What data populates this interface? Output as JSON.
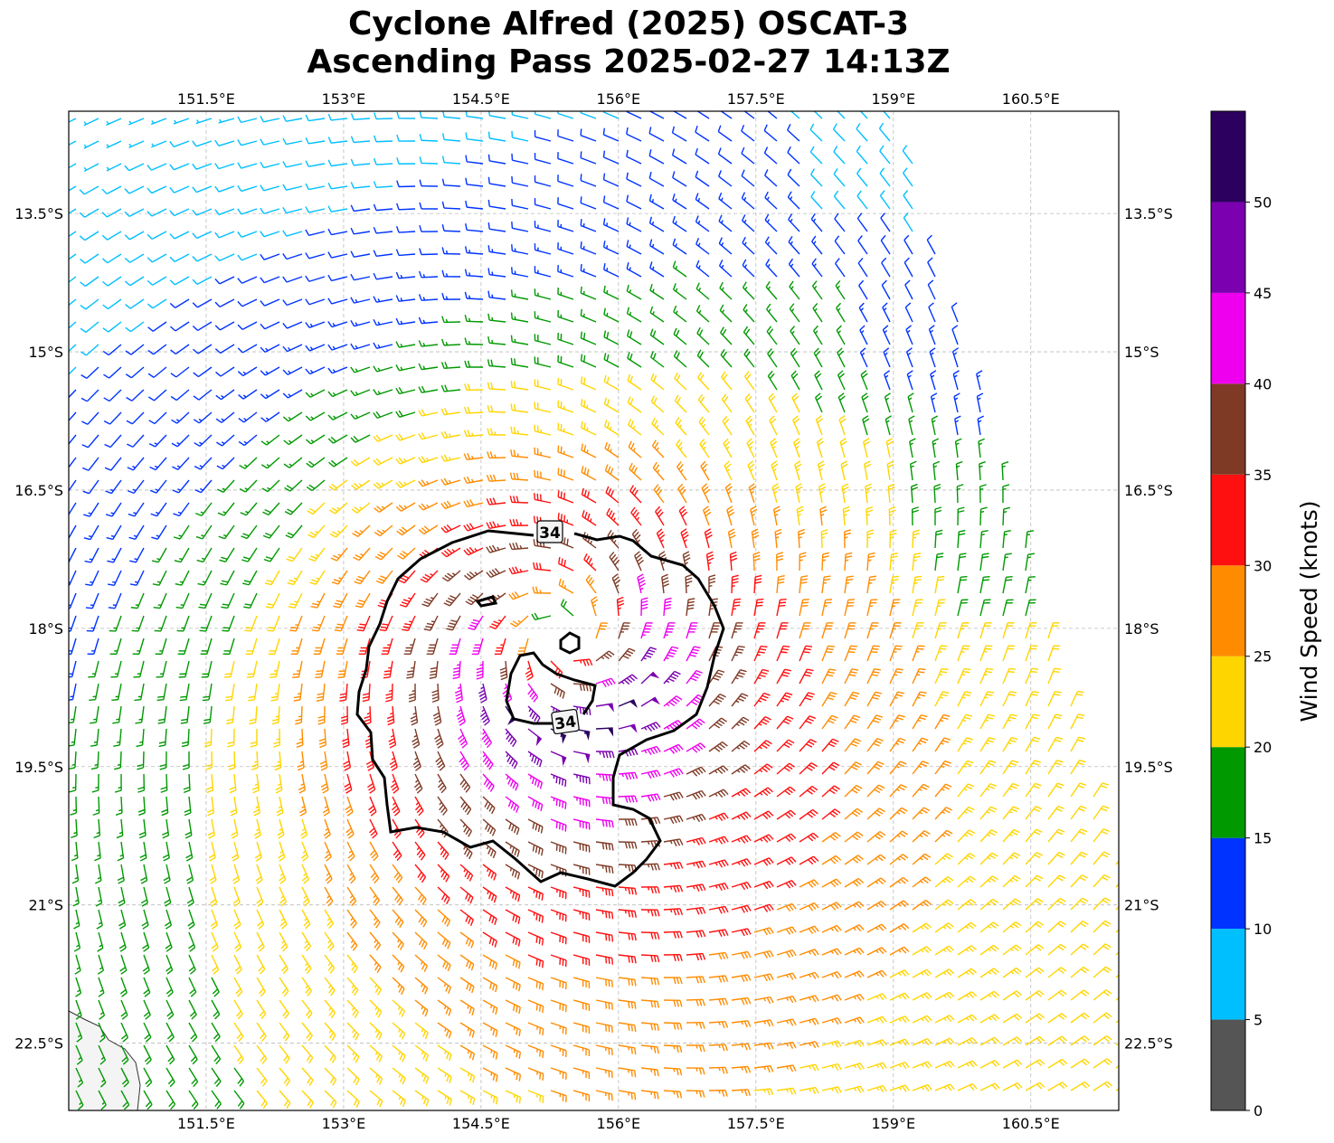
{
  "title_line1": "Cyclone Alfred (2025) OSCAT-3",
  "title_line2": "Ascending Pass 2025-02-27 14:13Z",
  "chart_data": {
    "type": "wind-barb-map",
    "lon_range": [
      150.0,
      161.46
    ],
    "lat_range": [
      -23.23,
      -12.39
    ],
    "lon_ticks": [
      "151.5°E",
      "153°E",
      "154.5°E",
      "156°E",
      "157.5°E",
      "159°E",
      "160.5°E"
    ],
    "lon_tick_values": [
      151.5,
      153,
      154.5,
      156,
      157.5,
      159,
      160.5
    ],
    "lat_ticks": [
      "13.5°S",
      "15°S",
      "16.5°S",
      "18°S",
      "19.5°S",
      "21°S",
      "22.5°S"
    ],
    "lat_tick_values": [
      -13.5,
      -15,
      -16.5,
      -18,
      -19.5,
      -21,
      -22.5
    ],
    "grid": true,
    "center": {
      "lon": 155.4,
      "lat": -18.1
    },
    "contour_level": 34,
    "contour_labels": [
      "34",
      "34"
    ],
    "colorbar": {
      "label": "Wind Speed (knots)",
      "bounds": [
        0,
        5,
        10,
        15,
        20,
        25,
        30,
        35,
        40,
        45,
        50,
        55
      ],
      "tick_labels": [
        "0",
        "5",
        "10",
        "15",
        "20",
        "25",
        "30",
        "35",
        "40",
        "45",
        "50"
      ],
      "colors": [
        "#555555",
        "#00bfff",
        "#0033ff",
        "#009900",
        "#ffd500",
        "#ff8c00",
        "#ff1010",
        "#7f3a26",
        "#ee00ee",
        "#7a00b0",
        "#2b005e"
      ]
    }
  }
}
